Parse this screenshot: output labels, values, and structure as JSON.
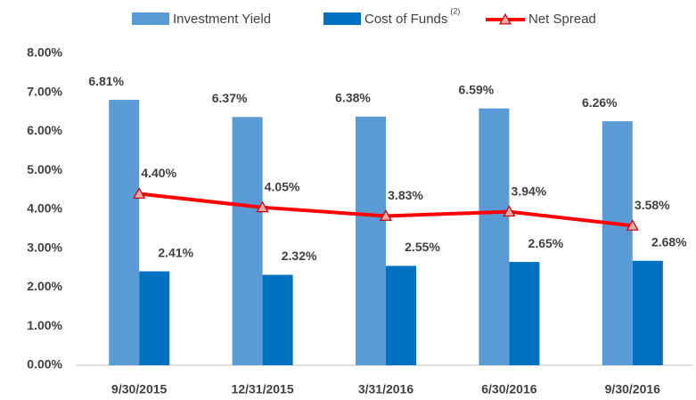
{
  "chart_data": {
    "type": "bar_line",
    "categories": [
      "9/30/2015",
      "12/31/2015",
      "3/31/2016",
      "6/30/2016",
      "9/30/2016"
    ],
    "series": [
      {
        "name": "Investment Yield",
        "color": "#5b9bd5",
        "type": "bar",
        "values": [
          6.81,
          6.37,
          6.38,
          6.59,
          6.26
        ],
        "value_labels": [
          "6.81%",
          "6.37%",
          "6.38%",
          "6.59%",
          "6.26%"
        ]
      },
      {
        "name": "Cost of Funds",
        "footnote": "(2)",
        "color": "#0070c0",
        "type": "bar",
        "values": [
          2.41,
          2.32,
          2.55,
          2.65,
          2.68
        ],
        "value_labels": [
          "2.41%",
          "2.32%",
          "2.55%",
          "2.65%",
          "2.68%"
        ]
      },
      {
        "name": "Net Spread",
        "color": "#ff0000",
        "type": "line",
        "values": [
          4.4,
          4.05,
          3.83,
          3.94,
          3.58
        ],
        "value_labels": [
          "4.40%",
          "4.05%",
          "3.83%",
          "3.94%",
          "3.58%"
        ]
      }
    ],
    "ylim": [
      0,
      8
    ],
    "yticks": [
      {
        "value": 0,
        "label": "0.00%"
      },
      {
        "value": 1,
        "label": "1.00%"
      },
      {
        "value": 2,
        "label": "2.00%"
      },
      {
        "value": 3,
        "label": "3.00%"
      },
      {
        "value": 4,
        "label": "4.00%"
      },
      {
        "value": 5,
        "label": "5.00%"
      },
      {
        "value": 6,
        "label": "6.00%"
      },
      {
        "value": 7,
        "label": "7.00%"
      },
      {
        "value": 8,
        "label": "8.00%"
      }
    ],
    "grid": false,
    "legend": "top"
  }
}
